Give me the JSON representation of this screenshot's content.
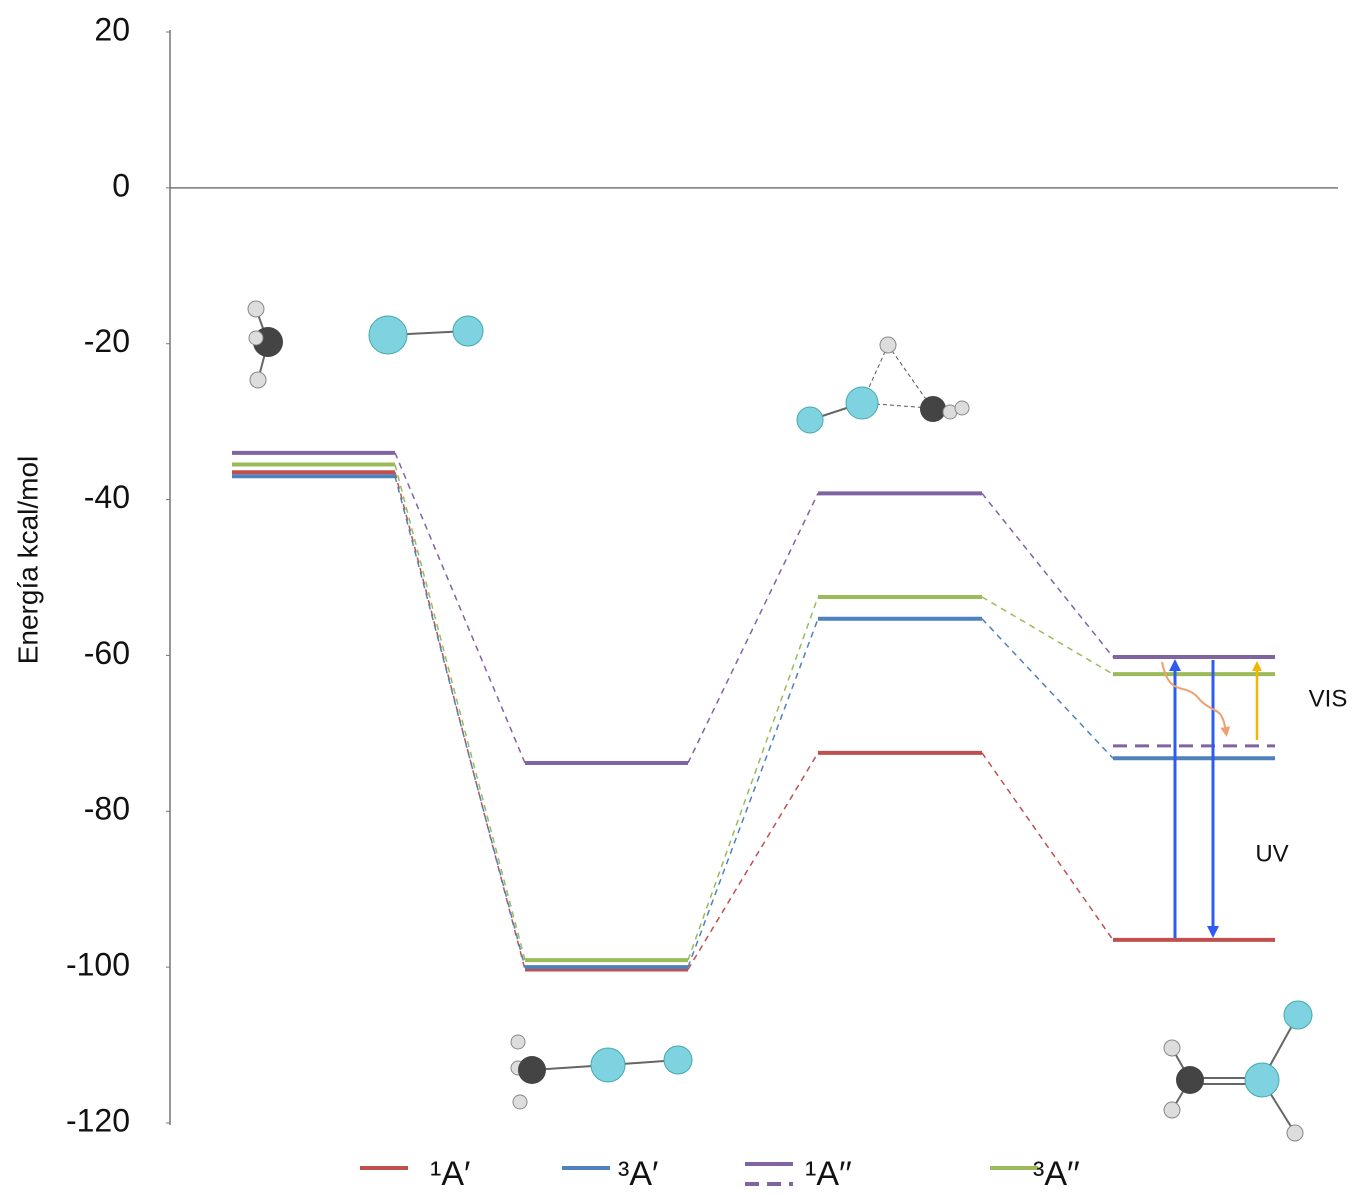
{
  "chart_data": {
    "type": "energy-levels",
    "y_label": "Energía kcal/mol",
    "ylim": [
      -120,
      20
    ],
    "yticks": [
      -120,
      -100,
      -80,
      -60,
      -40,
      -20,
      0,
      20
    ],
    "series": [
      {
        "name": "¹A′",
        "color": "#c0504d",
        "values": [
          -36.5,
          -100.3,
          -72.5,
          -96.5
        ]
      },
      {
        "name": "³A′",
        "color": "#4f81bd",
        "values": [
          -37,
          -100,
          -55.3,
          -73.2
        ]
      },
      {
        "name": "¹A′′",
        "color": "#8064a2",
        "values": [
          -34,
          -73.8,
          -39.2,
          -60.2
        ],
        "dashed_values": [
          null,
          null,
          null,
          -71.6
        ]
      },
      {
        "name": "³A′′",
        "color": "#9bbb59",
        "values": [
          -35.5,
          -99.1,
          -52.5,
          -62.4
        ]
      }
    ],
    "annotations": [
      "VIS",
      "UV"
    ]
  }
}
